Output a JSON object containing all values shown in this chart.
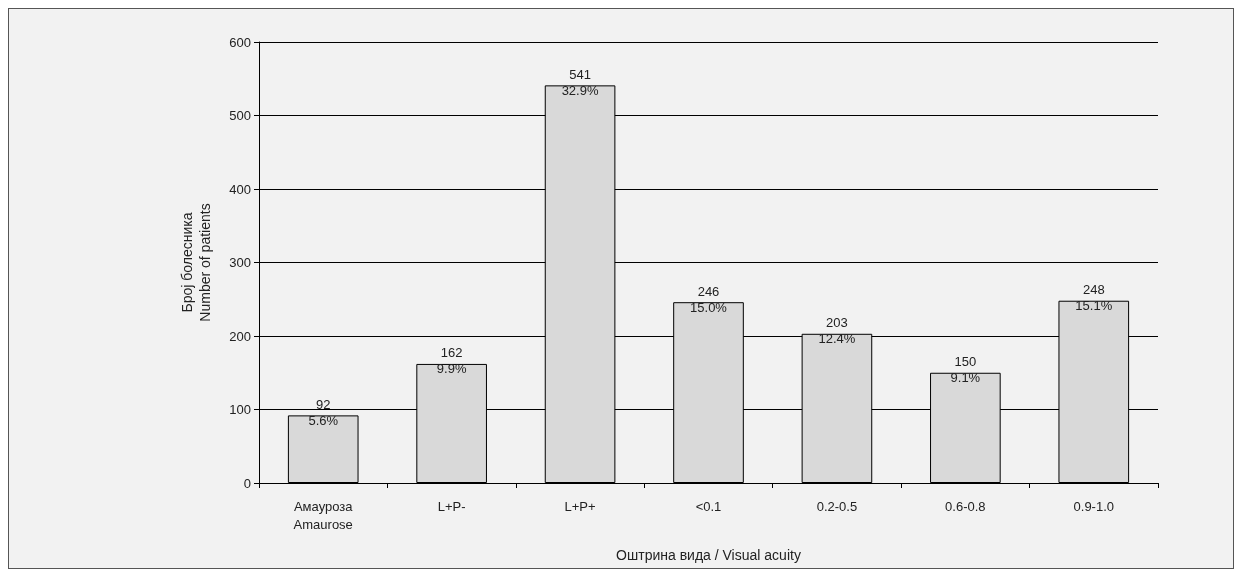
{
  "chart_data": {
    "type": "bar",
    "xlabel": "Оштрина вида / Visual acuity",
    "ylabel": "Број болесника\nNumber of patients",
    "categories": [
      "Амауроза\nAmaurose",
      "L+P-",
      "L+P+",
      "<0.1",
      "0.2-0.5",
      "0.6-0.8",
      "0.9-1.0"
    ],
    "values": [
      92,
      162,
      541,
      246,
      203,
      150,
      248
    ],
    "value_labels": [
      "92\n5.6%",
      "162\n9.9%",
      "541\n32.9%",
      "246\n15.0%",
      "203\n12.4%",
      "150\n9.1%",
      "248\n15.1%"
    ],
    "color": "#d9d9d9",
    "ylim": [
      0,
      600
    ],
    "yticks": [
      0,
      100,
      200,
      300,
      400,
      500,
      600
    ],
    "grid": "y"
  }
}
